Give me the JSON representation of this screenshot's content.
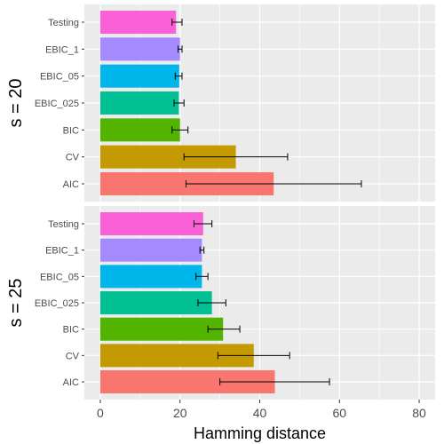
{
  "chart_data": {
    "type": "bar",
    "orientation": "horizontal",
    "xlabel": "Hamming distance",
    "ylabel": "",
    "xlim": [
      -4,
      84
    ],
    "x_ticks": [
      0,
      20,
      40,
      60,
      80
    ],
    "x_tick_labels": [
      "0",
      "20",
      "40",
      "60",
      "80"
    ],
    "grid": true,
    "categories": [
      "AIC",
      "CV",
      "BIC",
      "EBIC_025",
      "EBIC_05",
      "EBIC_1",
      "Testing"
    ],
    "colors": {
      "AIC": "#F8766D",
      "CV": "#C49A00",
      "BIC": "#53B400",
      "EBIC_025": "#00C094",
      "EBIC_05": "#00B6EB",
      "EBIC_1": "#A58AFF",
      "Testing": "#FB61D7"
    },
    "panel_background": "#EBEBEB",
    "grid_color": "#FFFFFF",
    "facets": [
      {
        "label": "s = 20",
        "values": [
          43.5,
          34,
          20,
          19.7,
          19.8,
          20,
          19
        ],
        "error_low": [
          21.5,
          21,
          18,
          18.5,
          18.8,
          19.5,
          18
        ],
        "error_high": [
          65.5,
          47,
          22,
          21,
          20.5,
          20.5,
          20.5
        ]
      },
      {
        "label": "s = 25",
        "values": [
          43.8,
          38.5,
          30.8,
          28,
          25.5,
          25.5,
          25.8
        ],
        "error_low": [
          30,
          29.5,
          27,
          24.5,
          24,
          25,
          23.5
        ],
        "error_high": [
          57.5,
          47.5,
          35,
          31.5,
          27,
          26,
          28
        ]
      }
    ]
  }
}
